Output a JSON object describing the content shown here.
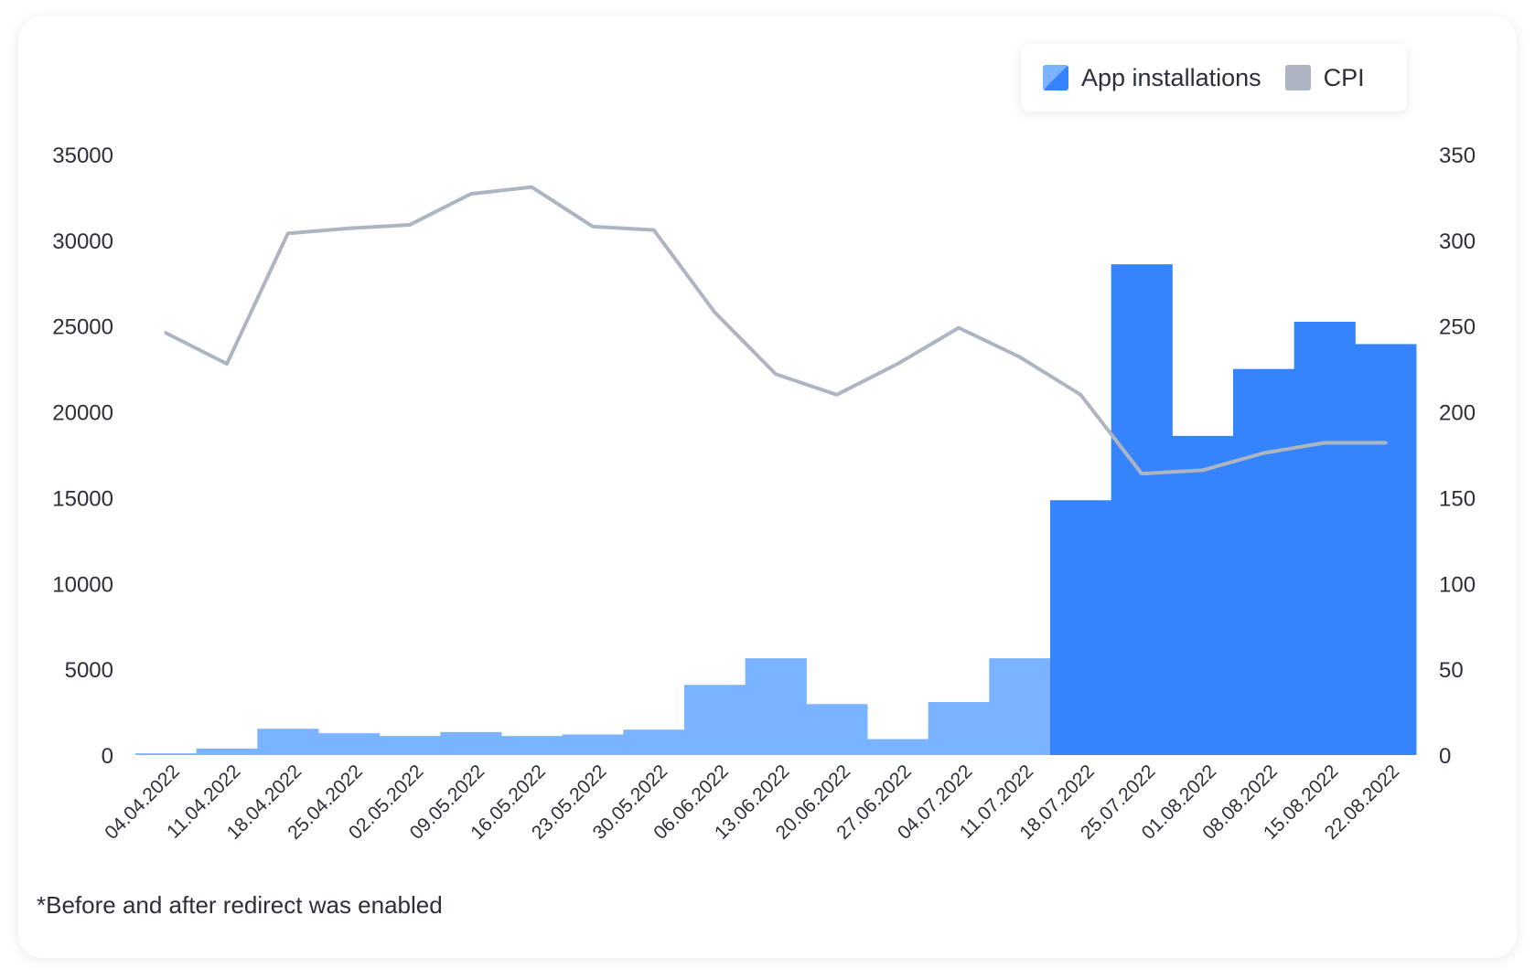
{
  "chart_data": {
    "type": "bar",
    "categories": [
      "04.04.2022",
      "11.04.2022",
      "18.04.2022",
      "25.04.2022",
      "02.05.2022",
      "09.05.2022",
      "16.05.2022",
      "23.05.2022",
      "30.05.2022",
      "06.06.2022",
      "13.06.2022",
      "20.06.2022",
      "27.06.2022",
      "04.07.2022",
      "11.07.2022",
      "18.07.2022",
      "25.07.2022",
      "01.08.2022",
      "08.08.2022",
      "15.08.2022",
      "22.08.2022"
    ],
    "series": [
      {
        "name": "App installations",
        "axis": "left",
        "type": "bar",
        "values": [
          100,
          380,
          1530,
          1270,
          1110,
          1340,
          1110,
          1200,
          1480,
          4090,
          5640,
          2970,
          930,
          3090,
          5640,
          14850,
          28600,
          18600,
          22500,
          25250,
          23950
        ],
        "phase": [
          "before",
          "before",
          "before",
          "before",
          "before",
          "before",
          "before",
          "before",
          "before",
          "before",
          "before",
          "before",
          "before",
          "before",
          "before",
          "after",
          "after",
          "after",
          "after",
          "after",
          "after"
        ]
      },
      {
        "name": "CPI",
        "axis": "right",
        "type": "line",
        "values": [
          246,
          228,
          304,
          307,
          309,
          327,
          331,
          308,
          306,
          258,
          222,
          210,
          228,
          249,
          232,
          210,
          164,
          166,
          176,
          182,
          182
        ]
      }
    ],
    "y_left": {
      "ticks": [
        "0",
        "5000",
        "10000",
        "15000",
        "20000",
        "25000",
        "30000",
        "35000"
      ],
      "ylim": [
        0,
        35000
      ]
    },
    "y_right": {
      "ticks": [
        "0",
        "50",
        "100",
        "150",
        "200",
        "250",
        "300",
        "350"
      ],
      "ylim": [
        0,
        350
      ]
    },
    "legend_position": "top-right",
    "grid": false,
    "colors": {
      "before": "#7ab3ff",
      "after": "#3584fd",
      "cpi": "#aeb5c2",
      "text": "#2b2f3a"
    }
  },
  "legend": {
    "installs_label": "App installations",
    "cpi_label": "CPI"
  },
  "footnote": "*Before and after redirect was enabled"
}
